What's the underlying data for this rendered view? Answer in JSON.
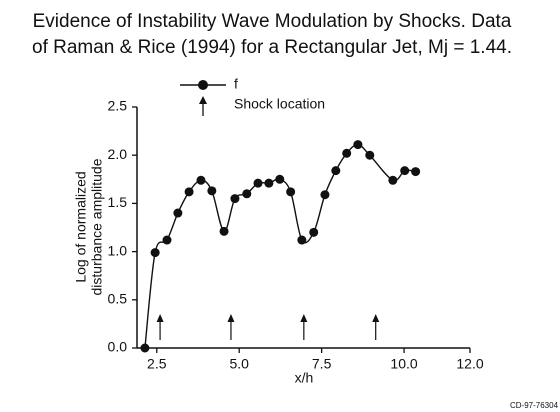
{
  "chart_data": {
    "type": "line",
    "title_lines": [
      "Evidence of Instability Wave Modulation by Shocks. Data",
      "of Raman & Rice (1994) for a Rectangular Jet, Mj = 1.44."
    ],
    "xlabel": "x/h",
    "ylabel_lines": [
      "Log of normalized",
      "disturbance amplitude"
    ],
    "series": [
      {
        "name": "f",
        "color": "#111111",
        "x": [
          2.14,
          2.45,
          2.81,
          3.14,
          3.48,
          3.84,
          4.17,
          4.54,
          4.87,
          5.23,
          5.57,
          5.9,
          6.23,
          6.56,
          6.9,
          7.26,
          7.6,
          7.93,
          8.26,
          8.6,
          8.96,
          9.66,
          10.02,
          10.35
        ],
        "values": [
          0,
          0.99,
          1.12,
          1.4,
          1.62,
          1.74,
          1.63,
          1.21,
          1.55,
          1.6,
          1.71,
          1.71,
          1.75,
          1.62,
          1.12,
          1.2,
          1.59,
          1.84,
          2.02,
          2.11,
          2.0,
          1.74,
          1.84,
          1.83
        ]
      }
    ],
    "shock_label": "Shock location",
    "shock_locations": [
      2.6,
      4.75,
      6.96,
      9.14
    ],
    "xlim": [
      1.9,
      12.0
    ],
    "xticks": [
      2.5,
      {
        "value": 5,
        "label": "5.0"
      },
      7.5,
      {
        "value": 10,
        "label": "10.0"
      },
      {
        "value": 12,
        "label": "12.0"
      }
    ],
    "ylim": [
      0,
      2.5
    ],
    "yticks": [
      {
        "value": 0,
        "label": "0.0"
      },
      0.5,
      {
        "value": 1,
        "label": "1.0"
      },
      1.5,
      {
        "value": 2,
        "label": "2.0"
      },
      2.5
    ],
    "footnote": "CD-97-76304"
  }
}
